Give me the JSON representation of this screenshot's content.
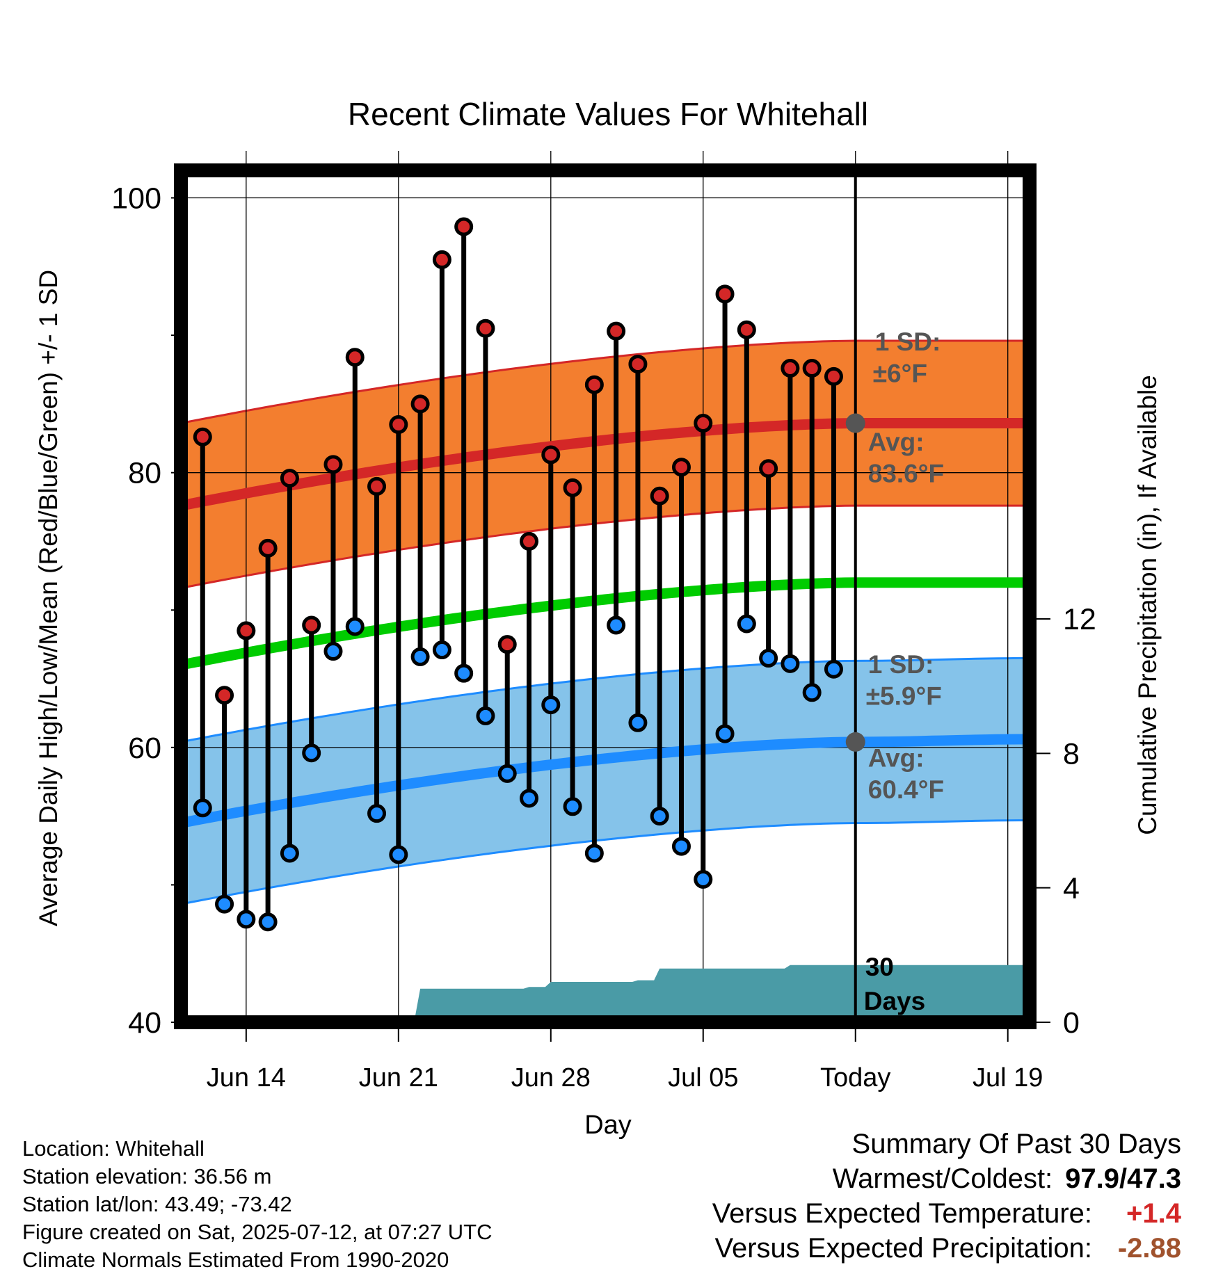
{
  "chart_data": {
    "type": "line",
    "title": "Recent Climate Values For Whitehall",
    "xlabel": "Day",
    "ylabel": "Average Daily High/Low/Mean (Red/Blue/Green) +/- 1 SD",
    "y2label": "Cumulative Precipitation (in), If Available",
    "ylim": [
      40,
      102
    ],
    "y2lim": [
      0,
      26
    ],
    "yticks": [
      "40",
      "60",
      "80",
      "100"
    ],
    "y2ticks": [
      "0",
      "4",
      "8",
      "12"
    ],
    "xticks": [
      "Jun 14",
      "Jun 21",
      "Jun 28",
      "Jul 05",
      "Today",
      "Jul 19"
    ],
    "grid": true,
    "dates": [
      "Jun 12",
      "Jun 13",
      "Jun 14",
      "Jun 15",
      "Jun 16",
      "Jun 17",
      "Jun 18",
      "Jun 19",
      "Jun 20",
      "Jun 21",
      "Jun 22",
      "Jun 23",
      "Jun 24",
      "Jun 25",
      "Jun 26",
      "Jun 27",
      "Jun 28",
      "Jun 29",
      "Jun 30",
      "Jul 01",
      "Jul 02",
      "Jul 03",
      "Jul 04",
      "Jul 05",
      "Jul 06",
      "Jul 07",
      "Jul 08",
      "Jul 09",
      "Jul 10",
      "Jul 11"
    ],
    "highs": [
      82.6,
      63.8,
      68.5,
      74.5,
      79.6,
      68.9,
      80.6,
      88.4,
      79.0,
      83.5,
      85.0,
      95.5,
      97.9,
      90.5,
      67.5,
      75.0,
      81.3,
      78.9,
      86.4,
      90.3,
      87.9,
      78.3,
      80.4,
      83.6,
      93.0,
      90.4,
      80.3,
      87.6,
      87.6,
      87.0
    ],
    "lows": [
      55.6,
      48.6,
      47.5,
      47.3,
      52.3,
      59.6,
      67.0,
      68.8,
      55.2,
      52.2,
      66.6,
      67.1,
      65.4,
      62.3,
      58.1,
      56.3,
      63.1,
      55.7,
      52.3,
      68.9,
      61.8,
      55.0,
      52.8,
      50.4,
      61.0,
      69.0,
      66.5,
      66.1,
      64.0,
      65.7
    ],
    "series": [
      {
        "name": "Avg High",
        "color": "#d42727",
        "x": [
          "Jun 11",
          "Jul 12",
          "Jul 20"
        ],
        "values": [
          77.6,
          83.6,
          83.6
        ]
      },
      {
        "name": "Avg Mean",
        "color": "#00cc00",
        "x": [
          "Jun 11",
          "Jul 12",
          "Jul 20"
        ],
        "values": [
          66.0,
          72.0,
          72.0
        ]
      },
      {
        "name": "Avg Low",
        "color": "#1e8cff",
        "x": [
          "Jun 11",
          "Jul 12",
          "Jul 20"
        ],
        "values": [
          54.5,
          60.4,
          60.6
        ]
      },
      {
        "name": "Cumulative Precipitation",
        "color": "#4a9ba6",
        "x": [
          "Jun 11",
          "Jun 18",
          "Jun 20",
          "Jun 21",
          "Jun 22",
          "Jun 27",
          "Jun 28",
          "Jul 02",
          "Jul 03",
          "Jul 08",
          "Jul 09",
          "Jul 20"
        ],
        "values": [
          0,
          0,
          0.1,
          0.1,
          1.0,
          1.05,
          1.2,
          1.25,
          1.6,
          1.6,
          1.7,
          1.72
        ]
      }
    ],
    "high_sd": 6.0,
    "low_sd": 5.9,
    "annotations": {
      "high_sd_label": "1 SD:",
      "high_sd_value": "±6°F",
      "high_avg_label": "Avg:",
      "high_avg_value": "83.6°F",
      "low_sd_label": "1 SD:",
      "low_sd_value": "±5.9°F",
      "low_avg_label": "Avg:",
      "low_avg_value": "60.4°F",
      "days_line1": "30",
      "days_line2": "Days"
    }
  },
  "footer": {
    "location": "Location: Whitehall",
    "elevation": "Station elevation: 36.56 m",
    "latlon": "Station lat/lon: 43.49; -73.42",
    "created": "Figure created on Sat, 2025-07-12, at 07:27 UTC",
    "normals": "Climate Normals Estimated From 1990-2020"
  },
  "summary": {
    "title": "Summary Of Past 30 Days",
    "warm_cold_label": "Warmest/Coldest:",
    "warm_cold_value": "97.9/47.3",
    "temp_label": "Versus Expected Temperature:",
    "temp_value": "+1.4",
    "temp_color": "#d42727",
    "precip_label": "Versus Expected Precipitation:",
    "precip_value": "-2.88",
    "precip_color": "#a0522d"
  }
}
